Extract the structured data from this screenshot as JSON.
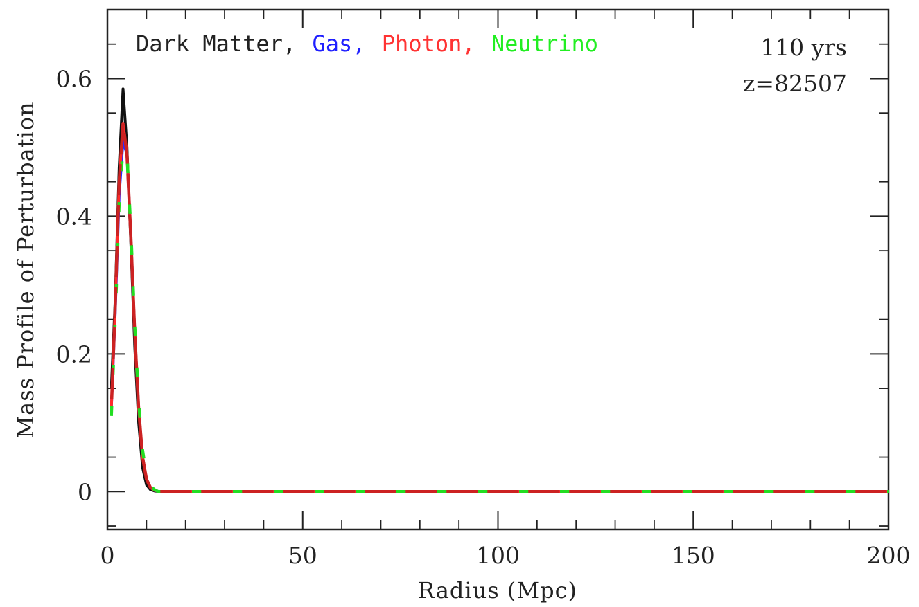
{
  "chart_data": {
    "type": "line",
    "title": "",
    "xlabel": "Radius (Mpc)",
    "ylabel": "Mass Profile of Perturbation",
    "xlim": [
      0,
      200
    ],
    "ylim": [
      -0.055,
      0.7
    ],
    "x_ticks": [
      0,
      50,
      100,
      150,
      200
    ],
    "x_tick_labels": [
      "0",
      "50",
      "100",
      "150",
      "200"
    ],
    "y_ticks": [
      0,
      0.2,
      0.4,
      0.6
    ],
    "y_tick_labels": [
      "0",
      "0.2",
      "0.4",
      "0.6"
    ],
    "grid": false,
    "legend_position": "top-left",
    "legend": [
      {
        "label": "Dark Matter,",
        "color": "#222222"
      },
      {
        "label": "Gas,",
        "color": "#1f1fff"
      },
      {
        "label": "Photon,",
        "color": "#ff3333"
      },
      {
        "label": "Neutrino",
        "color": "#22ee22"
      }
    ],
    "annotations": [
      "110 yrs",
      "z=82507"
    ],
    "series": [
      {
        "color": "#111111",
        "style": "solid",
        "x": [
          1,
          2,
          3,
          4,
          5,
          6,
          7,
          8,
          9,
          10,
          11,
          12,
          13,
          14,
          15,
          20,
          50,
          100,
          150,
          200
        ],
        "y": [
          0.15,
          0.28,
          0.47,
          0.585,
          0.5,
          0.36,
          0.21,
          0.1,
          0.035,
          0.01,
          0.003,
          0.001,
          0.0,
          0.0,
          0.0,
          0.0,
          0.0,
          0.0,
          0.0,
          0.0
        ]
      },
      {
        "color": "#2a2aff",
        "style": "solid",
        "x": [
          1,
          2,
          3,
          4,
          5,
          6,
          7,
          8,
          9,
          10,
          11,
          12,
          13,
          14,
          15,
          20,
          50,
          100,
          150,
          200
        ],
        "y": [
          0.12,
          0.26,
          0.43,
          0.51,
          0.49,
          0.37,
          0.23,
          0.12,
          0.05,
          0.018,
          0.006,
          0.002,
          0.0,
          0.0,
          0.0,
          0.0,
          0.0,
          0.0,
          0.0,
          0.0
        ]
      },
      {
        "color": "#ff2a2a",
        "style": "solid",
        "x": [
          1,
          2,
          3,
          4,
          5,
          6,
          7,
          8,
          9,
          10,
          11,
          12,
          13,
          14,
          15,
          20,
          50,
          100,
          150,
          200
        ],
        "y": [
          0.12,
          0.27,
          0.45,
          0.535,
          0.49,
          0.37,
          0.23,
          0.12,
          0.05,
          0.018,
          0.006,
          0.002,
          0.0,
          0.0,
          0.0,
          0.0,
          0.0,
          0.0,
          0.0,
          0.0
        ]
      },
      {
        "color": "#22dd22",
        "style": "dashed",
        "x": [
          1,
          2,
          3,
          4,
          5,
          6,
          7,
          8,
          9,
          10,
          11,
          12,
          13,
          14,
          15,
          20,
          50,
          100,
          150,
          200
        ],
        "y": [
          0.11,
          0.25,
          0.42,
          0.5,
          0.49,
          0.38,
          0.24,
          0.13,
          0.06,
          0.022,
          0.008,
          0.003,
          0.0,
          0.0,
          0.0,
          0.0,
          0.0,
          0.0,
          0.0,
          0.0
        ]
      },
      {
        "color": "#cc2222",
        "style": "dashed-overlay",
        "x": [
          1,
          2,
          3,
          4,
          5,
          6,
          7,
          8,
          9,
          10,
          11,
          12,
          13,
          14,
          15,
          20,
          50,
          100,
          150,
          200
        ],
        "y": [
          0.12,
          0.27,
          0.45,
          0.535,
          0.49,
          0.37,
          0.23,
          0.12,
          0.05,
          0.018,
          0.006,
          0.002,
          0.0,
          0.0,
          0.0,
          0.0,
          0.0,
          0.0,
          0.0,
          0.0
        ]
      }
    ]
  }
}
